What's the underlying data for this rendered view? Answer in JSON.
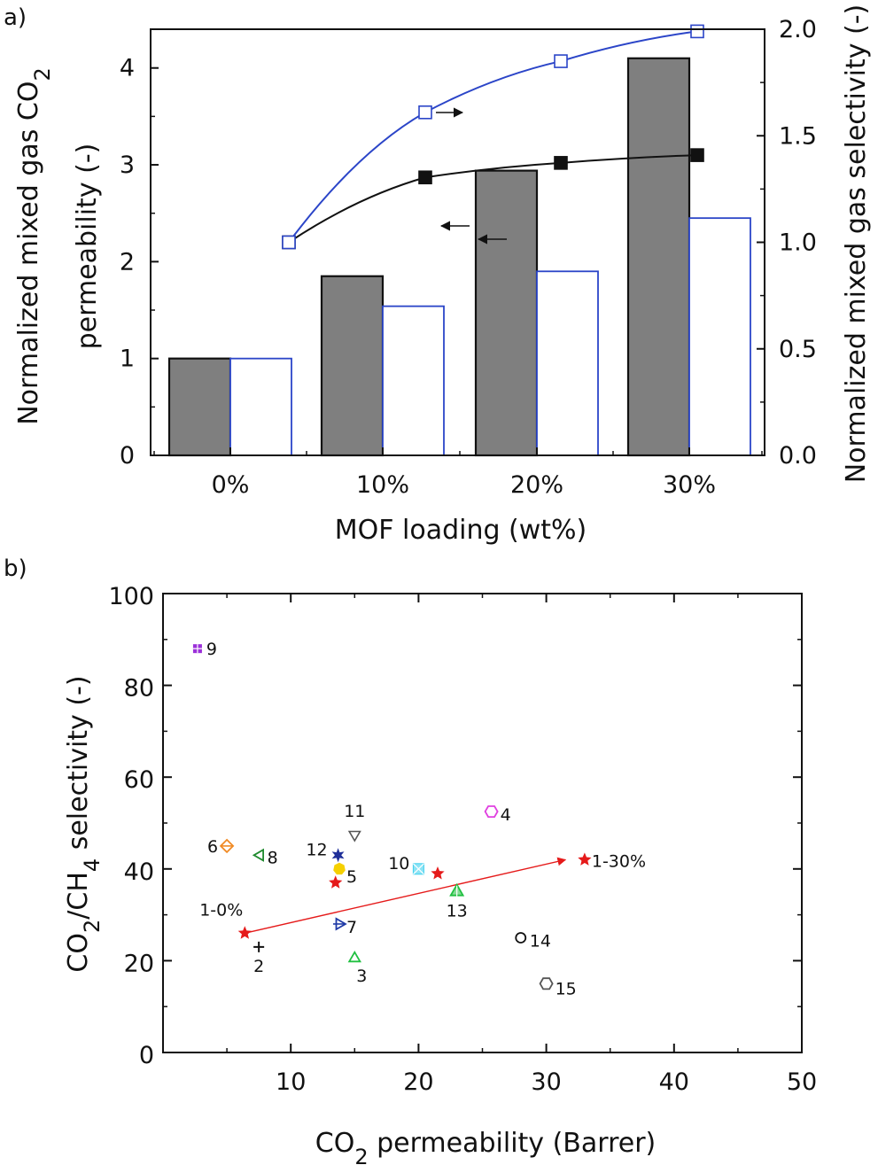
{
  "chart_data": [
    {
      "panel": "a)",
      "type": "bar",
      "xlabel": "MOF loading (wt%)",
      "ylabel_left": [
        "Normalized mixed gas CO2",
        "permeability (-)"
      ],
      "ylabel_right": "Normalized mixed gas selectivity (-)",
      "categories": [
        "0%",
        "10%",
        "20%",
        "30%"
      ],
      "ylim_left": [
        0,
        4.4
      ],
      "ylim_right": [
        0,
        2.0
      ],
      "yticks_left": [
        "0",
        "1",
        "2",
        "3",
        "4"
      ],
      "yticks_right": [
        "0.0",
        "0.5",
        "1.0",
        "1.5",
        "2.0"
      ],
      "series": [
        {
          "kind": "bar",
          "axis": "left",
          "style": "filled-gray",
          "values": [
            1.0,
            1.85,
            2.94,
            4.1
          ]
        },
        {
          "kind": "bar",
          "axis": "left",
          "style": "open-blue",
          "values": [
            1.0,
            1.54,
            1.9,
            2.45
          ]
        },
        {
          "kind": "line",
          "axis": "left",
          "style": "black-filled-square",
          "values": [
            2.2,
            2.87,
            3.02,
            3.1
          ]
        },
        {
          "kind": "line",
          "axis": "right",
          "style": "blue-open-square",
          "values": [
            1.0,
            1.61,
            1.85,
            1.99
          ]
        }
      ],
      "colors": {
        "bar_fill": "#7f7f7f",
        "open_bar": "#2b45c8",
        "black_line": "#111111",
        "blue_line": "#2b45c8"
      }
    },
    {
      "panel": "b)",
      "type": "scatter",
      "xlabel": "CO2 permeability (Barrer)",
      "ylabel": "CO2/CH4 selectivity (-)",
      "xlim": [
        0,
        50
      ],
      "ylim": [
        0,
        100
      ],
      "xticks": [
        "10",
        "20",
        "30",
        "40",
        "50"
      ],
      "yticks": [
        "0",
        "20",
        "40",
        "60",
        "80",
        "100"
      ],
      "points": [
        {
          "label": "9",
          "x": 2.7,
          "y": 88,
          "marker": "square-grid",
          "color": "#9b30d9"
        },
        {
          "label": "6",
          "x": 5.0,
          "y": 45,
          "marker": "diamond-plus",
          "color": "#f08a24"
        },
        {
          "label": "8",
          "x": 7.6,
          "y": 43,
          "marker": "triangle-left",
          "color": "#1f8a2e"
        },
        {
          "label": "12",
          "x": 13.7,
          "y": 43,
          "marker": "star6",
          "color": "#1f2f99"
        },
        {
          "label": "11",
          "x": 15.0,
          "y": 47.5,
          "marker": "triangle-down",
          "color": "#555555"
        },
        {
          "label": "5",
          "x": 13.8,
          "y": 40,
          "marker": "heptagon",
          "color": "#f5d000"
        },
        {
          "label": "",
          "x": 13.5,
          "y": 37,
          "marker": "star",
          "color": "#e51a1a"
        },
        {
          "label": "10",
          "x": 20.0,
          "y": 40,
          "marker": "square-x",
          "color": "#3fd0ee"
        },
        {
          "label": "",
          "x": 21.5,
          "y": 39,
          "marker": "star",
          "color": "#e51a1a"
        },
        {
          "label": "13",
          "x": 23.0,
          "y": 35,
          "marker": "triangle-up-cross",
          "color": "#20c040"
        },
        {
          "label": "4",
          "x": 25.7,
          "y": 52.5,
          "marker": "hexagon",
          "color": "#e040e0"
        },
        {
          "label": "7",
          "x": 13.8,
          "y": 28,
          "marker": "triangle-right-plus",
          "color": "#1f3aa6"
        },
        {
          "label": "2",
          "x": 7.5,
          "y": 23,
          "marker": "plus",
          "color": "#111111"
        },
        {
          "label": "3",
          "x": 15.0,
          "y": 20.5,
          "marker": "triangle-up",
          "color": "#20c040"
        },
        {
          "label": "14",
          "x": 28.0,
          "y": 25,
          "marker": "circle",
          "color": "#111111"
        },
        {
          "label": "15",
          "x": 30.0,
          "y": 15,
          "marker": "hexagon",
          "color": "#555555"
        },
        {
          "label": "1-0%",
          "x": 6.4,
          "y": 26,
          "marker": "star",
          "color": "#e51a1a"
        },
        {
          "label": "1-30%",
          "x": 33.0,
          "y": 42,
          "marker": "star",
          "color": "#e51a1a"
        }
      ],
      "trend_arrow": {
        "from": [
          6.4,
          26
        ],
        "to": [
          31.5,
          42
        ],
        "color": "#e51a1a"
      }
    }
  ]
}
